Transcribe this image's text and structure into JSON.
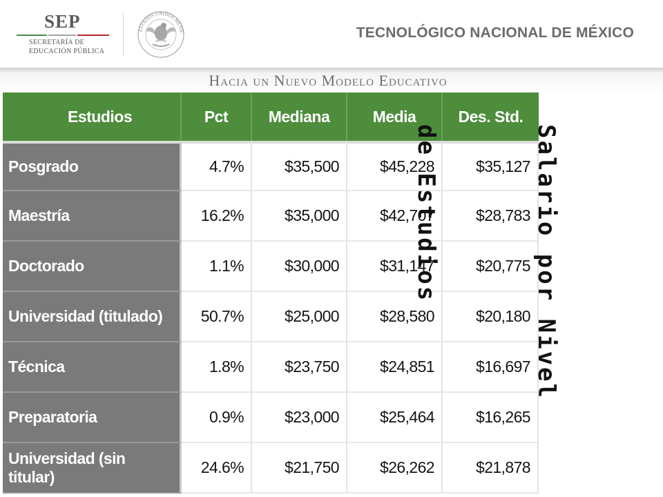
{
  "header": {
    "logo_word": "SEP",
    "logo_sub_line1": "SECRETARÍA DE",
    "logo_sub_line2": "EDUCACIÓN PÚBLICA",
    "institution": "TECNOLÓGICO NACIONAL DE MÉXICO",
    "seal_icon": "mexican-coat-of-arms-seal",
    "seal_text": "ESTADOS UNIDOS MEXICANOS"
  },
  "banner": {
    "text": "Hacia un Nuevo Modelo Educativo"
  },
  "table": {
    "headers": [
      "Estudios",
      "Pct",
      "Mediana",
      "Media",
      "Des. Std."
    ],
    "rows": [
      [
        "Posgrado",
        "4.7%",
        "$35,500",
        "$45,228",
        "$35,127"
      ],
      [
        "Maestría",
        "16.2%",
        "$35,000",
        "$42,707",
        "$28,783"
      ],
      [
        "Doctorado",
        "1.1%",
        "$30,000",
        "$31,147",
        "$20,775"
      ],
      [
        "Universidad (titulado)",
        "50.7%",
        "$25,000",
        "$28,580",
        "$20,180"
      ],
      [
        "Técnica",
        "1.8%",
        "$23,750",
        "$24,851",
        "$16,697"
      ],
      [
        "Preparatoria",
        "0.9%",
        "$23,000",
        "$25,464",
        "$16,265"
      ],
      [
        "Universidad (sin titular)",
        "24.6%",
        "$21,750",
        "$26,262",
        "$21,878"
      ]
    ]
  },
  "side_title": {
    "line1": "Salario por Nivel",
    "line2": "de Estudios"
  },
  "colors": {
    "header_green": "#4d8d3b",
    "label_gray": "#7a7a7a",
    "sep_green": "#3e8f4a",
    "sep_red": "#c0272d"
  }
}
